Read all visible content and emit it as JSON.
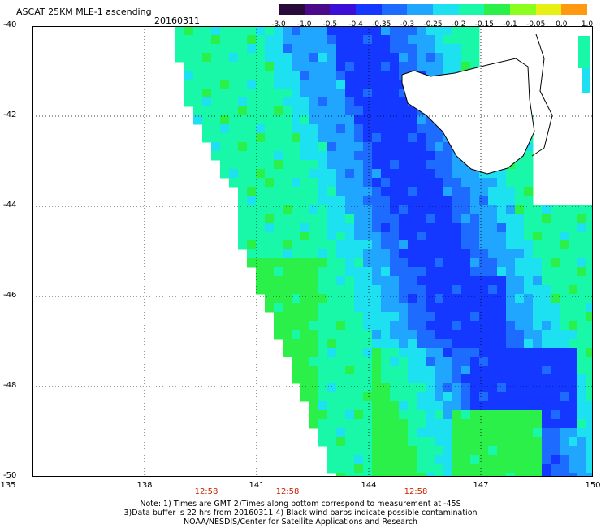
{
  "header": {
    "title": "ASCAT 25KM MLE-1 ascending",
    "date": "20160311"
  },
  "colorbar": {
    "labels": [
      "-3.0",
      "-1.0",
      "-0.5",
      "-0.4",
      "-0.35",
      "-0.3",
      "-0.25",
      "-0.2",
      "-0.15",
      "-0.1",
      "-0.05",
      "0.0",
      "1.0"
    ],
    "colors": [
      "#2a0a3a",
      "#4b0a8a",
      "#3c0fd8",
      "#1438ff",
      "#1e6cff",
      "#20a6ff",
      "#1de0f0",
      "#18f8a8",
      "#2cf04a",
      "#8cff1e",
      "#e6f014",
      "#ff9a10",
      "#ff3a10"
    ]
  },
  "map": {
    "y_axis_labels": [
      "-40",
      "-42",
      "-44",
      "-46",
      "-48",
      "-50"
    ],
    "x_axis_labels": [
      "135",
      "138",
      "141",
      "144",
      "147",
      "150"
    ],
    "time_labels": [
      "12:58",
      "12:58",
      "12:58"
    ],
    "lat_range": [
      -50,
      -40
    ],
    "lon_range": [
      135,
      150
    ]
  },
  "footer": {
    "note_line1": "Note: 1) Times are GMT 2)Times along bottom correspond to measurement at -45S",
    "note_line2": "3)Data buffer is 22 hrs from 20160311 4) Black wind barbs indicate possible contamination",
    "note_line3": "NOAA/NESDIS/Center for Satellite Applications and Research"
  }
}
